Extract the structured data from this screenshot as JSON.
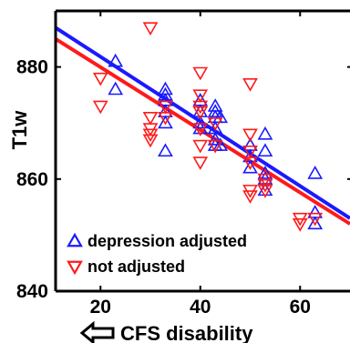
{
  "chart_data": {
    "type": "scatter",
    "xlabel": "CFS disability",
    "ylabel": "T1w",
    "xlim": [
      11,
      70
    ],
    "ylim": [
      840,
      890
    ],
    "xticks": [
      "20",
      "40",
      "60"
    ],
    "xtick_values": [
      20,
      40,
      60
    ],
    "yticks": [
      "880",
      "860",
      "840"
    ],
    "ytick_values": [
      880,
      860,
      840
    ],
    "legend_position": "bottom-left",
    "series": [
      {
        "name": "depression adjusted",
        "color": "#1a1aff",
        "marker": "triangle-up",
        "points": [
          [
            23,
            881
          ],
          [
            23,
            876
          ],
          [
            33,
            876
          ],
          [
            33,
            875
          ],
          [
            33,
            874
          ],
          [
            33,
            872
          ],
          [
            33,
            870
          ],
          [
            33,
            865
          ],
          [
            40,
            874
          ],
          [
            40,
            872
          ],
          [
            40,
            870
          ],
          [
            40,
            869
          ],
          [
            43,
            873
          ],
          [
            43,
            872
          ],
          [
            43,
            871
          ],
          [
            43,
            869
          ],
          [
            43,
            867
          ],
          [
            43,
            866
          ],
          [
            44,
            871
          ],
          [
            44,
            866
          ],
          [
            50,
            866
          ],
          [
            50,
            864
          ],
          [
            50,
            862
          ],
          [
            53,
            868
          ],
          [
            53,
            865
          ],
          [
            53,
            861
          ],
          [
            53,
            860
          ],
          [
            53,
            858
          ],
          [
            63,
            861
          ],
          [
            63,
            854
          ],
          [
            63,
            852
          ]
        ],
        "fit": {
          "x": [
            11,
            70
          ],
          "y": [
            887,
            853
          ]
        }
      },
      {
        "name": "not adjusted",
        "color": "#ff1a1a",
        "marker": "triangle-down",
        "points": [
          [
            20,
            878
          ],
          [
            20,
            873
          ],
          [
            30,
            887
          ],
          [
            30,
            871
          ],
          [
            30,
            869
          ],
          [
            30,
            868
          ],
          [
            30,
            867
          ],
          [
            33,
            873
          ],
          [
            33,
            871
          ],
          [
            40,
            879
          ],
          [
            40,
            875
          ],
          [
            40,
            873
          ],
          [
            40,
            872
          ],
          [
            40,
            869
          ],
          [
            40,
            866
          ],
          [
            40,
            863
          ],
          [
            43,
            870
          ],
          [
            43,
            866
          ],
          [
            50,
            877
          ],
          [
            50,
            868
          ],
          [
            50,
            865
          ],
          [
            50,
            863
          ],
          [
            50,
            858
          ],
          [
            50,
            857
          ],
          [
            53,
            860
          ],
          [
            53,
            859
          ],
          [
            53,
            858
          ],
          [
            60,
            853
          ],
          [
            60,
            852
          ],
          [
            63,
            853
          ]
        ],
        "fit": {
          "x": [
            11,
            70
          ],
          "y": [
            885,
            852
          ]
        }
      }
    ]
  }
}
